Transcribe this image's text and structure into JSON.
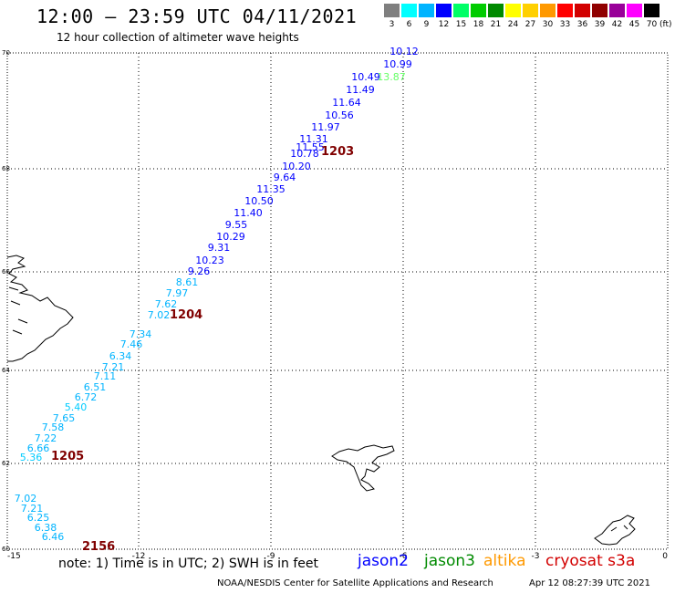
{
  "header": {
    "title": "12:00 — 23:59 UTC 04/11/2021",
    "subtitle": "12 hour collection of altimeter wave heights"
  },
  "legend_scale": {
    "unit": "(ft)",
    "bins": [
      {
        "label": "3",
        "color": "#7f7f7f"
      },
      {
        "label": "6",
        "color": "#00ffff"
      },
      {
        "label": "9",
        "color": "#00b4ff"
      },
      {
        "label": "12",
        "color": "#0000ff"
      },
      {
        "label": "15",
        "color": "#00ff66"
      },
      {
        "label": "18",
        "color": "#00cc00"
      },
      {
        "label": "21",
        "color": "#008a00"
      },
      {
        "label": "24",
        "color": "#ffff00"
      },
      {
        "label": "27",
        "color": "#ffd000"
      },
      {
        "label": "30",
        "color": "#ff9900"
      },
      {
        "label": "33",
        "color": "#ff0000"
      },
      {
        "label": "36",
        "color": "#d20000"
      },
      {
        "label": "39",
        "color": "#900000"
      },
      {
        "label": "42",
        "color": "#990099"
      },
      {
        "label": "45",
        "color": "#ff00ff"
      },
      {
        "label": "70",
        "color": "#000000"
      }
    ]
  },
  "map": {
    "lon_range": [
      -15,
      0
    ],
    "lat_range": [
      60,
      70
    ],
    "lon_ticks": [
      "-15",
      "-12",
      "-9",
      "-6",
      "-3",
      "0"
    ],
    "lat_ticks": [
      "70",
      "68",
      "66",
      "64",
      "62",
      "60"
    ],
    "grid": true
  },
  "passes": [
    {
      "time": "1203",
      "satellite": "jason2",
      "color": "#800000"
    },
    {
      "time": "1204",
      "satellite": "jason2",
      "color": "#800000"
    },
    {
      "time": "1205",
      "satellite": "jason2",
      "color": "#800000"
    },
    {
      "time": "2156",
      "satellite": "jason2",
      "color": "#800000"
    }
  ],
  "wave_heights": [
    {
      "value": "10.12",
      "color": "#0000ff"
    },
    {
      "value": "10.99",
      "color": "#0000ff"
    },
    {
      "value": "13.87",
      "color": "#66ff66"
    },
    {
      "value": "10.49",
      "color": "#0000ff"
    },
    {
      "value": "11.49",
      "color": "#0000ff"
    },
    {
      "value": "11.64",
      "color": "#0000ff"
    },
    {
      "value": "10.56",
      "color": "#0000ff"
    },
    {
      "value": "11.97",
      "color": "#0000ff"
    },
    {
      "value": "11.31",
      "color": "#0000ff"
    },
    {
      "value": "11.55",
      "color": "#0000ff"
    },
    {
      "value": "10.78",
      "color": "#0000ff"
    },
    {
      "value": "10.20",
      "color": "#0000ff"
    },
    {
      "value": "9.64",
      "color": "#0000ff"
    },
    {
      "value": "11.35",
      "color": "#0000ff"
    },
    {
      "value": "10.50",
      "color": "#0000ff"
    },
    {
      "value": "11.40",
      "color": "#0000ff"
    },
    {
      "value": "9.55",
      "color": "#0000ff"
    },
    {
      "value": "10.29",
      "color": "#0000ff"
    },
    {
      "value": "9.31",
      "color": "#0000ff"
    },
    {
      "value": "10.23",
      "color": "#0000ff"
    },
    {
      "value": "9.26",
      "color": "#0000ff"
    },
    {
      "value": "8.61",
      "color": "#00b4ff"
    },
    {
      "value": "7.97",
      "color": "#00b4ff"
    },
    {
      "value": "7.62",
      "color": "#00b4ff"
    },
    {
      "value": "7.02",
      "color": "#00b4ff"
    },
    {
      "value": "7.34",
      "color": "#00b4ff"
    },
    {
      "value": "7.46",
      "color": "#00b4ff"
    },
    {
      "value": "6.34",
      "color": "#00b4ff"
    },
    {
      "value": "7.21",
      "color": "#00b4ff"
    },
    {
      "value": "7.11",
      "color": "#00b4ff"
    },
    {
      "value": "6.51",
      "color": "#00b4ff"
    },
    {
      "value": "6.72",
      "color": "#00b4ff"
    },
    {
      "value": "5.40",
      "color": "#00ccff"
    },
    {
      "value": "7.65",
      "color": "#00b4ff"
    },
    {
      "value": "7.58",
      "color": "#00b4ff"
    },
    {
      "value": "7.22",
      "color": "#00b4ff"
    },
    {
      "value": "6.66",
      "color": "#00b4ff"
    },
    {
      "value": "5.36",
      "color": "#00ccff"
    },
    {
      "value": "7.02",
      "color": "#00b4ff"
    },
    {
      "value": "7.21",
      "color": "#00b4ff"
    },
    {
      "value": "6.25",
      "color": "#00b4ff"
    },
    {
      "value": "6.38",
      "color": "#00b4ff"
    },
    {
      "value": "6.46",
      "color": "#00b4ff"
    }
  ],
  "footer": {
    "note": "note:  1) Time is in UTC;  2) SWH is in feet",
    "satellites": [
      {
        "name": "jason2",
        "color": "#0000ff"
      },
      {
        "name": "jason3",
        "color": "#008a00"
      },
      {
        "name": "altika",
        "color": "#ff9900"
      },
      {
        "name": "cryosat s3a",
        "color": "#d20000"
      }
    ],
    "credit": "NOAA/NESDIS Center for Satellite Applications and Research",
    "timestamp": "Apr 12 08:27:39 UTC 2021"
  }
}
